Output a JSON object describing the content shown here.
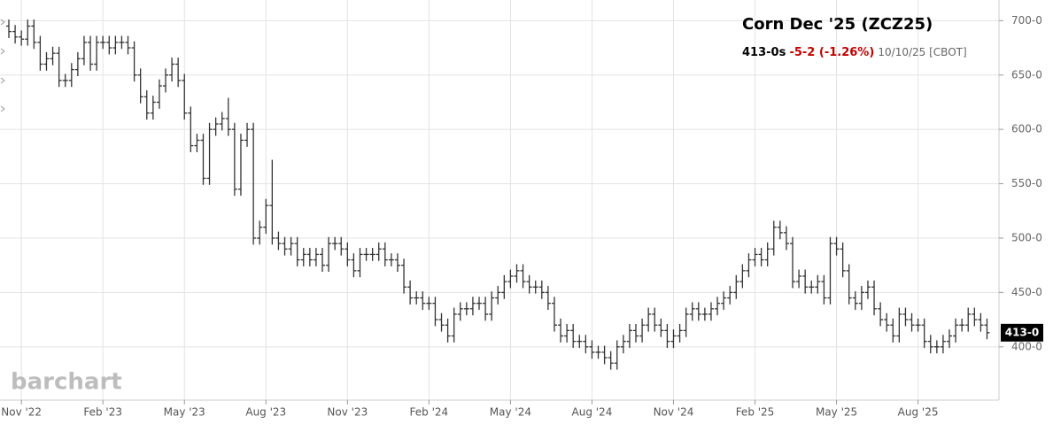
{
  "chart_data": {
    "type": "ohlc",
    "title": "Corn Dec '25 (ZCZ25)",
    "quote": {
      "last": "413-0s",
      "change": "-5-2 (-1.26%)",
      "info": "10/10/25 [CBOT]"
    },
    "watermark": "barchart",
    "color": "#333333",
    "grid": true,
    "ylim": [
      351,
      719
    ],
    "yticks": [
      {
        "value": 400,
        "label": "400-0"
      },
      {
        "value": 450,
        "label": "450-0"
      },
      {
        "value": 500,
        "label": "500-0"
      },
      {
        "value": 550,
        "label": "550-0"
      },
      {
        "value": 600,
        "label": "600-0"
      },
      {
        "value": 650,
        "label": "650-0"
      },
      {
        "value": 700,
        "label": "700-0"
      }
    ],
    "last_marker": {
      "value": 413,
      "label": "413-0"
    },
    "categories": [
      null,
      null,
      "Nov '22",
      null,
      null,
      null,
      null,
      null,
      null,
      null,
      null,
      null,
      null,
      null,
      null,
      "Feb '23",
      null,
      null,
      null,
      null,
      null,
      null,
      null,
      null,
      null,
      null,
      null,
      null,
      "May '23",
      null,
      null,
      null,
      null,
      null,
      null,
      null,
      null,
      null,
      null,
      null,
      null,
      "Aug '23",
      null,
      null,
      null,
      null,
      null,
      null,
      null,
      null,
      null,
      null,
      null,
      null,
      "Nov '23",
      null,
      null,
      null,
      null,
      null,
      null,
      null,
      null,
      null,
      null,
      null,
      null,
      "Feb '24",
      null,
      null,
      null,
      null,
      null,
      null,
      null,
      null,
      null,
      null,
      null,
      null,
      "May '24",
      null,
      null,
      null,
      null,
      null,
      null,
      null,
      null,
      null,
      null,
      null,
      null,
      "Aug '24",
      null,
      null,
      null,
      null,
      null,
      null,
      null,
      null,
      null,
      null,
      null,
      null,
      "Nov '24",
      null,
      null,
      null,
      null,
      null,
      null,
      null,
      null,
      null,
      null,
      null,
      null,
      "Feb '25",
      null,
      null,
      null,
      null,
      null,
      null,
      null,
      null,
      null,
      null,
      null,
      null,
      "May '25",
      null,
      null,
      null,
      null,
      null,
      null,
      null,
      null,
      null,
      null,
      null,
      null,
      "Aug '25",
      null,
      null,
      null,
      null,
      null,
      null,
      null,
      null,
      null,
      null,
      null
    ],
    "open": [
      695,
      690,
      685,
      683,
      695,
      680,
      660,
      665,
      670,
      645,
      645,
      655,
      665,
      680,
      660,
      680,
      680,
      675,
      680,
      680,
      675,
      650,
      630,
      615,
      625,
      640,
      650,
      660,
      645,
      615,
      585,
      590,
      555,
      600,
      605,
      610,
      600,
      545,
      590,
      600,
      500,
      510,
      530,
      500,
      495,
      490,
      495,
      480,
      485,
      480,
      485,
      475,
      495,
      495,
      490,
      480,
      470,
      485,
      485,
      485,
      490,
      480,
      480,
      475,
      455,
      445,
      445,
      440,
      440,
      425,
      420,
      410,
      430,
      435,
      435,
      440,
      440,
      430,
      445,
      450,
      460,
      465,
      470,
      460,
      455,
      455,
      450,
      440,
      420,
      410,
      415,
      405,
      405,
      400,
      395,
      395,
      390,
      385,
      400,
      405,
      415,
      410,
      420,
      430,
      420,
      415,
      405,
      410,
      415,
      430,
      435,
      430,
      430,
      435,
      440,
      445,
      450,
      460,
      470,
      480,
      485,
      480,
      490,
      510,
      505,
      495,
      460,
      465,
      455,
      455,
      460,
      445,
      495,
      490,
      470,
      445,
      440,
      450,
      455,
      435,
      425,
      420,
      410,
      430,
      425,
      420,
      420,
      405,
      400,
      400,
      405,
      410,
      420,
      420,
      430,
      425,
      420
    ],
    "high": [
      701,
      696,
      691,
      701,
      701,
      686,
      671,
      676,
      676,
      651,
      661,
      671,
      686,
      686,
      686,
      686,
      686,
      686,
      686,
      686,
      681,
      656,
      636,
      631,
      646,
      656,
      666,
      666,
      651,
      621,
      596,
      596,
      606,
      611,
      616,
      629,
      606,
      596,
      606,
      606,
      516,
      536,
      572,
      506,
      501,
      501,
      501,
      491,
      491,
      491,
      491,
      501,
      501,
      501,
      496,
      486,
      491,
      491,
      491,
      496,
      496,
      486,
      486,
      481,
      461,
      451,
      451,
      446,
      446,
      431,
      426,
      436,
      441,
      441,
      446,
      446,
      446,
      451,
      456,
      466,
      471,
      476,
      476,
      466,
      461,
      461,
      456,
      446,
      426,
      421,
      421,
      411,
      411,
      406,
      401,
      401,
      396,
      406,
      411,
      421,
      421,
      426,
      436,
      436,
      426,
      421,
      416,
      421,
      436,
      441,
      441,
      436,
      441,
      446,
      451,
      456,
      466,
      476,
      486,
      491,
      491,
      496,
      516,
      516,
      511,
      501,
      471,
      471,
      461,
      466,
      466,
      501,
      501,
      496,
      476,
      451,
      456,
      461,
      461,
      441,
      431,
      426,
      436,
      436,
      431,
      426,
      426,
      411,
      406,
      411,
      416,
      426,
      426,
      436,
      436,
      431,
      426
    ],
    "low": [
      684,
      679,
      677,
      677,
      674,
      654,
      654,
      659,
      639,
      639,
      639,
      649,
      659,
      654,
      654,
      674,
      669,
      669,
      674,
      669,
      644,
      624,
      609,
      609,
      619,
      634,
      644,
      639,
      609,
      579,
      579,
      549,
      549,
      594,
      599,
      594,
      539,
      539,
      584,
      494,
      494,
      504,
      494,
      489,
      484,
      484,
      474,
      474,
      474,
      474,
      469,
      469,
      489,
      484,
      474,
      464,
      464,
      479,
      479,
      479,
      474,
      474,
      469,
      449,
      439,
      439,
      434,
      434,
      419,
      414,
      404,
      404,
      424,
      429,
      429,
      434,
      424,
      424,
      439,
      444,
      454,
      459,
      454,
      449,
      449,
      444,
      434,
      414,
      404,
      404,
      399,
      399,
      394,
      389,
      389,
      384,
      379,
      379,
      394,
      399,
      404,
      404,
      414,
      414,
      409,
      399,
      399,
      404,
      409,
      424,
      424,
      424,
      424,
      429,
      434,
      439,
      444,
      454,
      464,
      474,
      474,
      474,
      484,
      499,
      489,
      454,
      454,
      449,
      449,
      449,
      439,
      439,
      484,
      464,
      439,
      434,
      434,
      444,
      429,
      419,
      414,
      404,
      404,
      419,
      414,
      414,
      399,
      394,
      394,
      394,
      399,
      404,
      414,
      414,
      419,
      414,
      407
    ],
    "close": [
      690,
      685,
      683,
      695,
      680,
      660,
      665,
      670,
      645,
      645,
      655,
      665,
      680,
      660,
      680,
      680,
      675,
      680,
      680,
      675,
      650,
      630,
      615,
      625,
      640,
      650,
      660,
      645,
      615,
      585,
      590,
      555,
      600,
      605,
      610,
      600,
      545,
      590,
      600,
      500,
      510,
      530,
      500,
      495,
      490,
      495,
      480,
      485,
      480,
      485,
      475,
      495,
      495,
      490,
      480,
      470,
      485,
      485,
      485,
      490,
      480,
      480,
      475,
      455,
      445,
      445,
      440,
      440,
      425,
      420,
      410,
      430,
      435,
      435,
      440,
      440,
      430,
      445,
      450,
      460,
      465,
      470,
      460,
      455,
      455,
      450,
      440,
      420,
      410,
      415,
      405,
      405,
      400,
      395,
      395,
      390,
      385,
      400,
      405,
      415,
      410,
      420,
      430,
      420,
      415,
      405,
      410,
      415,
      430,
      435,
      430,
      430,
      435,
      440,
      445,
      450,
      460,
      470,
      480,
      485,
      480,
      490,
      510,
      505,
      495,
      460,
      465,
      455,
      455,
      460,
      445,
      495,
      490,
      470,
      445,
      440,
      450,
      455,
      435,
      425,
      420,
      410,
      430,
      425,
      420,
      420,
      405,
      400,
      400,
      405,
      410,
      420,
      420,
      430,
      425,
      420,
      413
    ]
  }
}
